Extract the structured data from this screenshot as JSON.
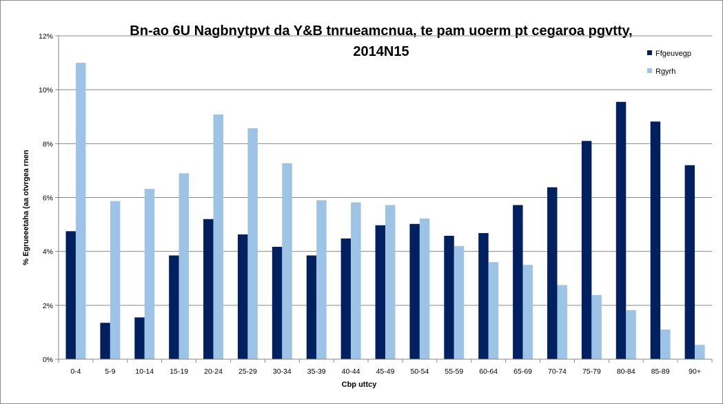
{
  "chart_data": {
    "type": "bar",
    "title_lines": [
      "Bn-ao 6U Nagbnytpvt da Y&B tnrueamcnua, te pam uoerm pt cegaroa pgvtty,",
      "2014N15"
    ],
    "xlabel": "Cbp uttcy",
    "ylabel": "% Egrueeetaha (aa otvrgea rnen",
    "categories": [
      "0-4",
      "5-9",
      "10-14",
      "15-19",
      "20-24",
      "25-29",
      "30-34",
      "35-39",
      "40-44",
      "45-49",
      "50-54",
      "55-59",
      "60-64",
      "65-69",
      "70-74",
      "75-79",
      "80-84",
      "85-89",
      "90+"
    ],
    "ylim": [
      0,
      12
    ],
    "yticks": [
      0,
      2,
      4,
      6,
      8,
      10,
      12
    ],
    "ytick_labels": [
      "0%",
      "2%",
      "4%",
      "6%",
      "8%",
      "10%",
      "12%"
    ],
    "grid": true,
    "legend_position": "top-right",
    "series": [
      {
        "name": "Ffgeuvegp",
        "color": "#002060",
        "values": [
          4.75,
          1.35,
          1.55,
          3.85,
          5.2,
          4.63,
          4.17,
          3.85,
          4.48,
          4.97,
          5.02,
          4.58,
          4.68,
          5.72,
          6.38,
          8.1,
          9.55,
          8.82,
          7.2
        ]
      },
      {
        "name": "Rgyrh",
        "color": "#9dc3e6",
        "values": [
          11.0,
          5.87,
          6.32,
          6.9,
          9.08,
          8.57,
          7.27,
          5.9,
          5.82,
          5.72,
          5.22,
          4.2,
          3.6,
          3.5,
          2.75,
          2.38,
          1.82,
          1.1,
          0.53
        ]
      }
    ]
  }
}
